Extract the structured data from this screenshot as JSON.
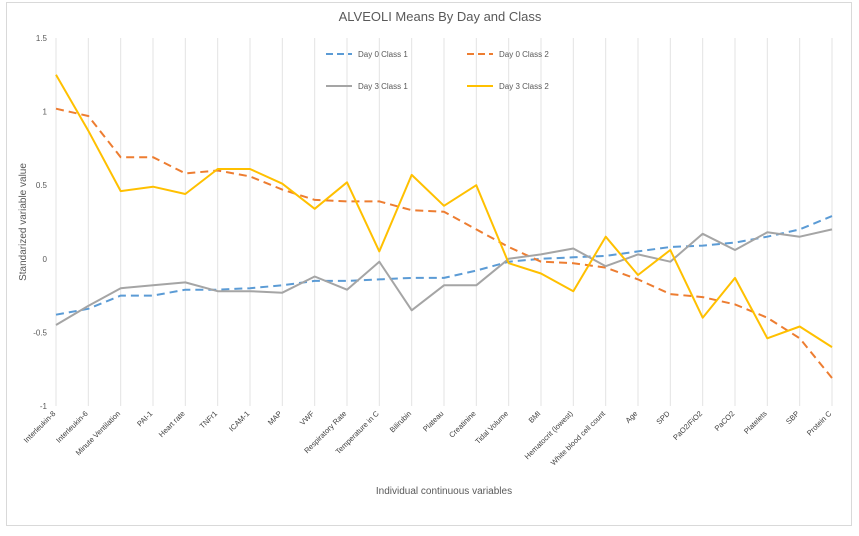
{
  "chart_data": {
    "type": "line",
    "title": "ALVEOLI Means By Day and Class",
    "xlabel": "Individual  continuous variables",
    "ylabel": "Standarized variable value",
    "ylim": [
      -1,
      1.5
    ],
    "yticks": [
      -1,
      -0.5,
      0,
      0.5,
      1,
      1.5
    ],
    "ytick_labels": [
      "-1",
      "-0.5",
      "0",
      "0.5",
      "1",
      "1.5"
    ],
    "grid": "vertical",
    "legend_position": "top-center",
    "categories": [
      "Interleukin-8",
      "Interleukin-6",
      "Minute Ventilation",
      "PAI-1",
      "Heart rate",
      "TNFr1",
      "ICAM-1",
      "MAP",
      "VWF",
      "Respiratory Rate",
      "Temperature in C",
      "Bilirubin",
      "Plateau",
      "Creatinine",
      "Tidal Volume",
      "BMI",
      "Hematocrit (lowest)",
      "White blood cell count",
      "Age",
      "SPD",
      "PaO2/FiO2",
      "PaCO2",
      "Platelets",
      "SBP",
      "Protein C"
    ],
    "series": [
      {
        "name": "Day  0 Class 1",
        "color": "#5b9bd5",
        "dash": "dashed",
        "values": [
          -0.38,
          -0.34,
          -0.25,
          -0.25,
          -0.21,
          -0.21,
          -0.2,
          -0.18,
          -0.15,
          -0.15,
          -0.14,
          -0.13,
          -0.13,
          -0.08,
          -0.02,
          0.0,
          0.01,
          0.02,
          0.05,
          0.08,
          0.09,
          0.11,
          0.15,
          0.2,
          0.29
        ]
      },
      {
        "name": "Day 0 Class 2",
        "color": "#ed7d31",
        "dash": "dashed",
        "values": [
          1.02,
          0.97,
          0.69,
          0.69,
          0.58,
          0.6,
          0.56,
          0.47,
          0.4,
          0.39,
          0.39,
          0.33,
          0.32,
          0.2,
          0.08,
          -0.02,
          -0.03,
          -0.06,
          -0.14,
          -0.24,
          -0.26,
          -0.31,
          -0.4,
          -0.54,
          -0.81
        ]
      },
      {
        "name": "Day  3 Class 1",
        "color": "#a5a5a5",
        "dash": "solid",
        "values": [
          -0.45,
          -0.32,
          -0.2,
          -0.18,
          -0.16,
          -0.22,
          -0.22,
          -0.23,
          -0.12,
          -0.21,
          -0.02,
          -0.35,
          -0.18,
          -0.18,
          0.0,
          0.03,
          0.07,
          -0.05,
          0.03,
          -0.02,
          0.17,
          0.06,
          0.18,
          0.15,
          0.2
        ]
      },
      {
        "name": "Day 3 Class 2",
        "color": "#ffc000",
        "dash": "solid",
        "values": [
          1.25,
          0.87,
          0.46,
          0.49,
          0.44,
          0.61,
          0.61,
          0.51,
          0.34,
          0.52,
          0.05,
          0.57,
          0.36,
          0.5,
          -0.03,
          -0.1,
          -0.22,
          0.15,
          -0.11,
          0.06,
          -0.4,
          -0.13,
          -0.54,
          -0.46,
          -0.6
        ]
      }
    ]
  }
}
